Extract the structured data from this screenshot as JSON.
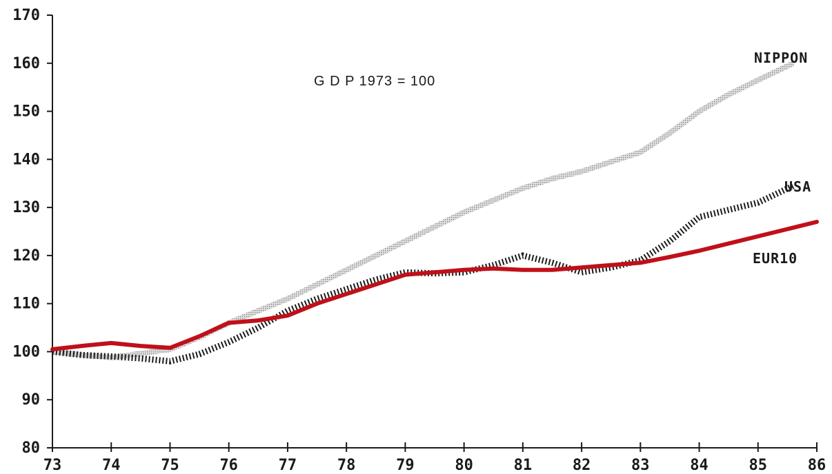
{
  "chart_data": {
    "type": "line",
    "title": "G D P  1973 = 100",
    "x": [
      73,
      74,
      75,
      76,
      77,
      78,
      79,
      80,
      81,
      82,
      83,
      84,
      85,
      86
    ],
    "x_tick_labels": [
      "73",
      "74",
      "75",
      "76",
      "77",
      "78",
      "79",
      "80",
      "81",
      "82",
      "83",
      "84",
      "85",
      "86"
    ],
    "y_tick_labels": [
      "80",
      "90",
      "100",
      "110",
      "120",
      "130",
      "140",
      "150",
      "160",
      "170"
    ],
    "ylim": [
      80,
      170
    ],
    "xlim": [
      73,
      86
    ],
    "grid": false,
    "series": [
      {
        "name": "NIPPON",
        "color": "#b8b8b8",
        "style": "dotted-light",
        "points": [
          [
            73,
            100
          ],
          [
            73.5,
            99.3
          ],
          [
            74,
            98.8
          ],
          [
            74.5,
            99.6
          ],
          [
            75,
            100.5
          ],
          [
            75.5,
            103
          ],
          [
            76,
            106
          ],
          [
            76.5,
            108.5
          ],
          [
            77,
            111
          ],
          [
            77.5,
            114
          ],
          [
            78,
            117
          ],
          [
            78.5,
            120
          ],
          [
            79,
            123
          ],
          [
            79.5,
            126
          ],
          [
            80,
            129
          ],
          [
            80.5,
            131.5
          ],
          [
            81,
            134
          ],
          [
            81.5,
            136
          ],
          [
            82,
            137.5
          ],
          [
            82.5,
            139.5
          ],
          [
            83,
            141.5
          ],
          [
            83.5,
            145.5
          ],
          [
            84,
            150
          ],
          [
            84.5,
            153.5
          ],
          [
            85,
            156.5
          ],
          [
            85.6,
            160
          ]
        ]
      },
      {
        "name": "USA",
        "color": "#1a1a1a",
        "style": "dotted-dark",
        "points": [
          [
            73,
            100
          ],
          [
            73.5,
            99.3
          ],
          [
            74,
            99
          ],
          [
            74.5,
            98.6
          ],
          [
            75,
            98
          ],
          [
            75.5,
            99.5
          ],
          [
            76,
            102
          ],
          [
            76.5,
            105
          ],
          [
            77,
            108.5
          ],
          [
            77.5,
            111
          ],
          [
            78,
            113
          ],
          [
            78.5,
            115
          ],
          [
            79,
            116.5
          ],
          [
            79.5,
            116.3
          ],
          [
            80,
            116.5
          ],
          [
            80.5,
            118
          ],
          [
            81,
            120
          ],
          [
            81.5,
            118.5
          ],
          [
            82,
            116.5
          ],
          [
            82.5,
            117.5
          ],
          [
            83,
            119
          ],
          [
            83.5,
            123
          ],
          [
            84,
            128
          ],
          [
            84.5,
            129.5
          ],
          [
            85,
            131
          ],
          [
            85.6,
            134.5
          ]
        ]
      },
      {
        "name": "EUR10",
        "color": "#c0101a",
        "style": "solid",
        "points": [
          [
            73,
            100.5
          ],
          [
            73.5,
            101.2
          ],
          [
            74,
            101.8
          ],
          [
            74.5,
            101.2
          ],
          [
            75,
            100.8
          ],
          [
            75.5,
            103.2
          ],
          [
            76,
            106
          ],
          [
            76.5,
            106.5
          ],
          [
            77,
            107.5
          ],
          [
            77.5,
            110
          ],
          [
            78,
            112
          ],
          [
            78.5,
            114
          ],
          [
            79,
            116
          ],
          [
            79.5,
            116.5
          ],
          [
            80,
            117
          ],
          [
            80.5,
            117.3
          ],
          [
            81,
            117
          ],
          [
            81.5,
            117
          ],
          [
            82,
            117.5
          ],
          [
            82.5,
            118
          ],
          [
            83,
            118.5
          ],
          [
            83.5,
            119.7
          ],
          [
            84,
            121
          ],
          [
            84.5,
            122.5
          ],
          [
            85,
            124
          ],
          [
            85.5,
            125.5
          ],
          [
            86,
            127
          ]
        ]
      }
    ]
  }
}
